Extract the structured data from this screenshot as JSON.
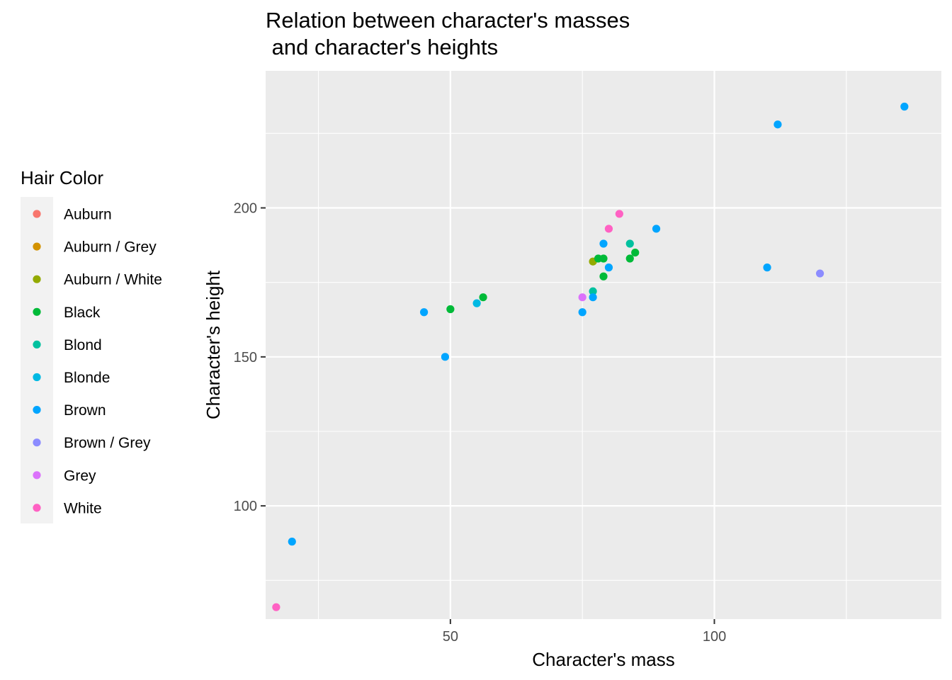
{
  "chart_data": {
    "type": "scatter",
    "title_line1": "Relation between character's masses",
    "title_line2": " and character's heights",
    "xlabel": "Character's mass",
    "ylabel": "Character's height",
    "xlim": [
      15,
      143
    ],
    "ylim": [
      62,
      246
    ],
    "x_ticks": [
      50,
      100
    ],
    "y_ticks": [
      100,
      150,
      200
    ],
    "x_minor_ticks": [
      25,
      75,
      125
    ],
    "y_minor_ticks": [
      75,
      125,
      175,
      225
    ],
    "grid": true,
    "legend": {
      "title": "Hair Color",
      "placement": "left",
      "entries": [
        {
          "label": "Auburn",
          "color": "#F8766D"
        },
        {
          "label": "Auburn / Grey",
          "color": "#D39200"
        },
        {
          "label": "Auburn / White",
          "color": "#93AA00"
        },
        {
          "label": "Black",
          "color": "#00BA38"
        },
        {
          "label": "Blond",
          "color": "#00C19F"
        },
        {
          "label": "Blonde",
          "color": "#00B9E3"
        },
        {
          "label": "Brown",
          "color": "#00A5FF"
        },
        {
          "label": "Brown / Grey",
          "color": "#8C8CFF"
        },
        {
          "label": "Grey",
          "color": "#DB72FB"
        },
        {
          "label": "White",
          "color": "#FF61C3"
        }
      ]
    },
    "series": [
      {
        "name": "Auburn / White",
        "color": "#93AA00",
        "points": [
          [
            77,
            182
          ]
        ]
      },
      {
        "name": "Black",
        "color": "#00BA38",
        "points": [
          [
            50,
            166
          ],
          [
            56.2,
            170
          ],
          [
            78,
            183
          ],
          [
            79,
            183
          ],
          [
            79,
            177
          ],
          [
            84,
            183
          ],
          [
            85,
            185
          ]
        ]
      },
      {
        "name": "Blond",
        "color": "#00C19F",
        "points": [
          [
            77,
            172
          ],
          [
            84,
            188
          ]
        ]
      },
      {
        "name": "Blonde",
        "color": "#00B9E3",
        "points": [
          [
            55,
            168
          ]
        ]
      },
      {
        "name": "Brown",
        "color": "#00A5FF",
        "points": [
          [
            20,
            88
          ],
          [
            45,
            165
          ],
          [
            49,
            150
          ],
          [
            75,
            165
          ],
          [
            77,
            170
          ],
          [
            79,
            188
          ],
          [
            80,
            180
          ],
          [
            89,
            193
          ],
          [
            110,
            180
          ],
          [
            112,
            228
          ],
          [
            136,
            234
          ]
        ]
      },
      {
        "name": "Brown / Grey",
        "color": "#8C8CFF",
        "points": [
          [
            120,
            178
          ]
        ]
      },
      {
        "name": "Grey",
        "color": "#DB72FB",
        "points": [
          [
            75,
            170
          ]
        ]
      },
      {
        "name": "White",
        "color": "#FF61C3",
        "points": [
          [
            17,
            66
          ],
          [
            80,
            193
          ],
          [
            82,
            198
          ]
        ]
      }
    ]
  }
}
